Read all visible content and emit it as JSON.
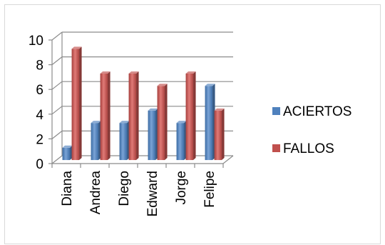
{
  "chart_data": {
    "type": "bar",
    "categories": [
      "Diana",
      "Andrea",
      "Diego",
      "Edward",
      "Jorge",
      "Felipe"
    ],
    "series": [
      {
        "name": "ACIERTOS",
        "values": [
          1,
          3,
          3,
          4,
          3,
          6
        ],
        "color": "#4f81bd"
      },
      {
        "name": "FALLOS",
        "values": [
          9,
          7,
          7,
          6,
          7,
          4
        ],
        "color": "#c0504d"
      }
    ],
    "yticks": [
      "0",
      "2",
      "4",
      "6",
      "8",
      "10"
    ],
    "ylim": [
      0,
      10
    ],
    "grid": true,
    "legend_position": "right",
    "three_d": true
  }
}
